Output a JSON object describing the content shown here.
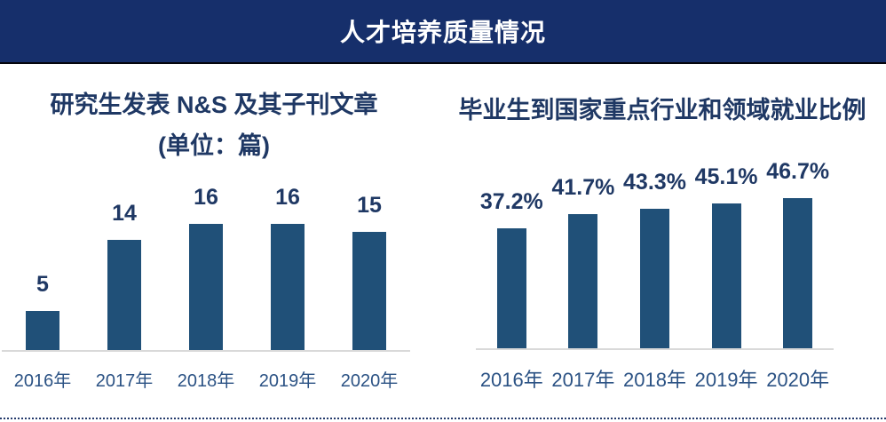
{
  "header": {
    "title": "人才培养质量情况"
  },
  "chart_data": [
    {
      "type": "bar",
      "title": "研究生发表 N&S 及其子刊文章",
      "subtitle": "(单位：篇)",
      "categories": [
        "2016年",
        "2017年",
        "2018年",
        "2019年",
        "2020年"
      ],
      "values": [
        5,
        14,
        16,
        16,
        15
      ],
      "data_labels": [
        "5",
        "14",
        "16",
        "16",
        "15"
      ],
      "xlabel": "",
      "ylabel": "",
      "ylim": [
        0,
        16
      ],
      "grid": false,
      "legend": "none",
      "y_axis_visible": false
    },
    {
      "type": "bar",
      "title": "毕业生到国家重点行业和领域就业比例",
      "subtitle": "",
      "categories": [
        "2016年",
        "2017年",
        "2018年",
        "2019年",
        "2020年"
      ],
      "values": [
        37.2,
        41.7,
        43.3,
        45.1,
        46.7
      ],
      "data_labels": [
        "37.2%",
        "41.7%",
        "43.3%",
        "45.1%",
        "46.7%"
      ],
      "xlabel": "",
      "ylabel": "",
      "ylim": [
        0,
        46.7
      ],
      "grid": false,
      "legend": "none",
      "y_axis_visible": false
    }
  ],
  "colors": {
    "header_bg": "#162F6B",
    "header_text": "#FFFFFF",
    "bar": "#205078",
    "title_text": "#1F3864",
    "data_label_text": "#1F3864",
    "axis_label_text": "#2B5284",
    "baseline": "#D9D9D9",
    "dotted_divider": "#243A6B"
  }
}
